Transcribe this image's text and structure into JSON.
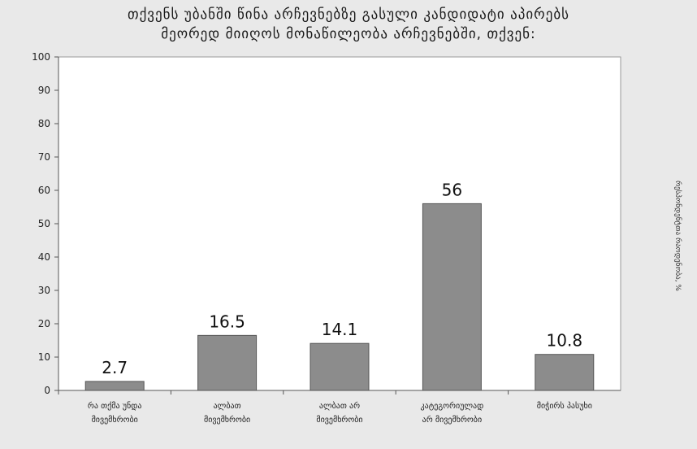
{
  "chart_data": {
    "type": "bar",
    "title_lines": [
      "თქვენს უბანში წინა არჩევნებზე გასული კანდიდატი აპირებს",
      "მეორედ მიიღოს მონაწილეობა არჩევნებში, თქვენ:"
    ],
    "categories": [
      [
        "რა თქმა უნდა",
        "მივემხრობი"
      ],
      [
        "ალბათ",
        "მივემხრობი"
      ],
      [
        "ალბათ არ",
        "მივემხრობი"
      ],
      [
        "კატეგორიულად",
        "არ მივემხრობი"
      ],
      [
        "მიჭირს პასუხი",
        ""
      ]
    ],
    "values": [
      2.7,
      16.5,
      14.1,
      56,
      10.8
    ],
    "value_labels": [
      "2.7",
      "16.5",
      "14.1",
      "56",
      "10.8"
    ],
    "ylim": [
      0,
      100
    ],
    "yticks": [
      "0",
      "10",
      "20",
      "30",
      "40",
      "50",
      "60",
      "70",
      "80",
      "90",
      "100"
    ],
    "ylabel": "რესპონდენტთა რაოდენობა, %",
    "bar_color": "#8c8c8c",
    "grid": false
  }
}
